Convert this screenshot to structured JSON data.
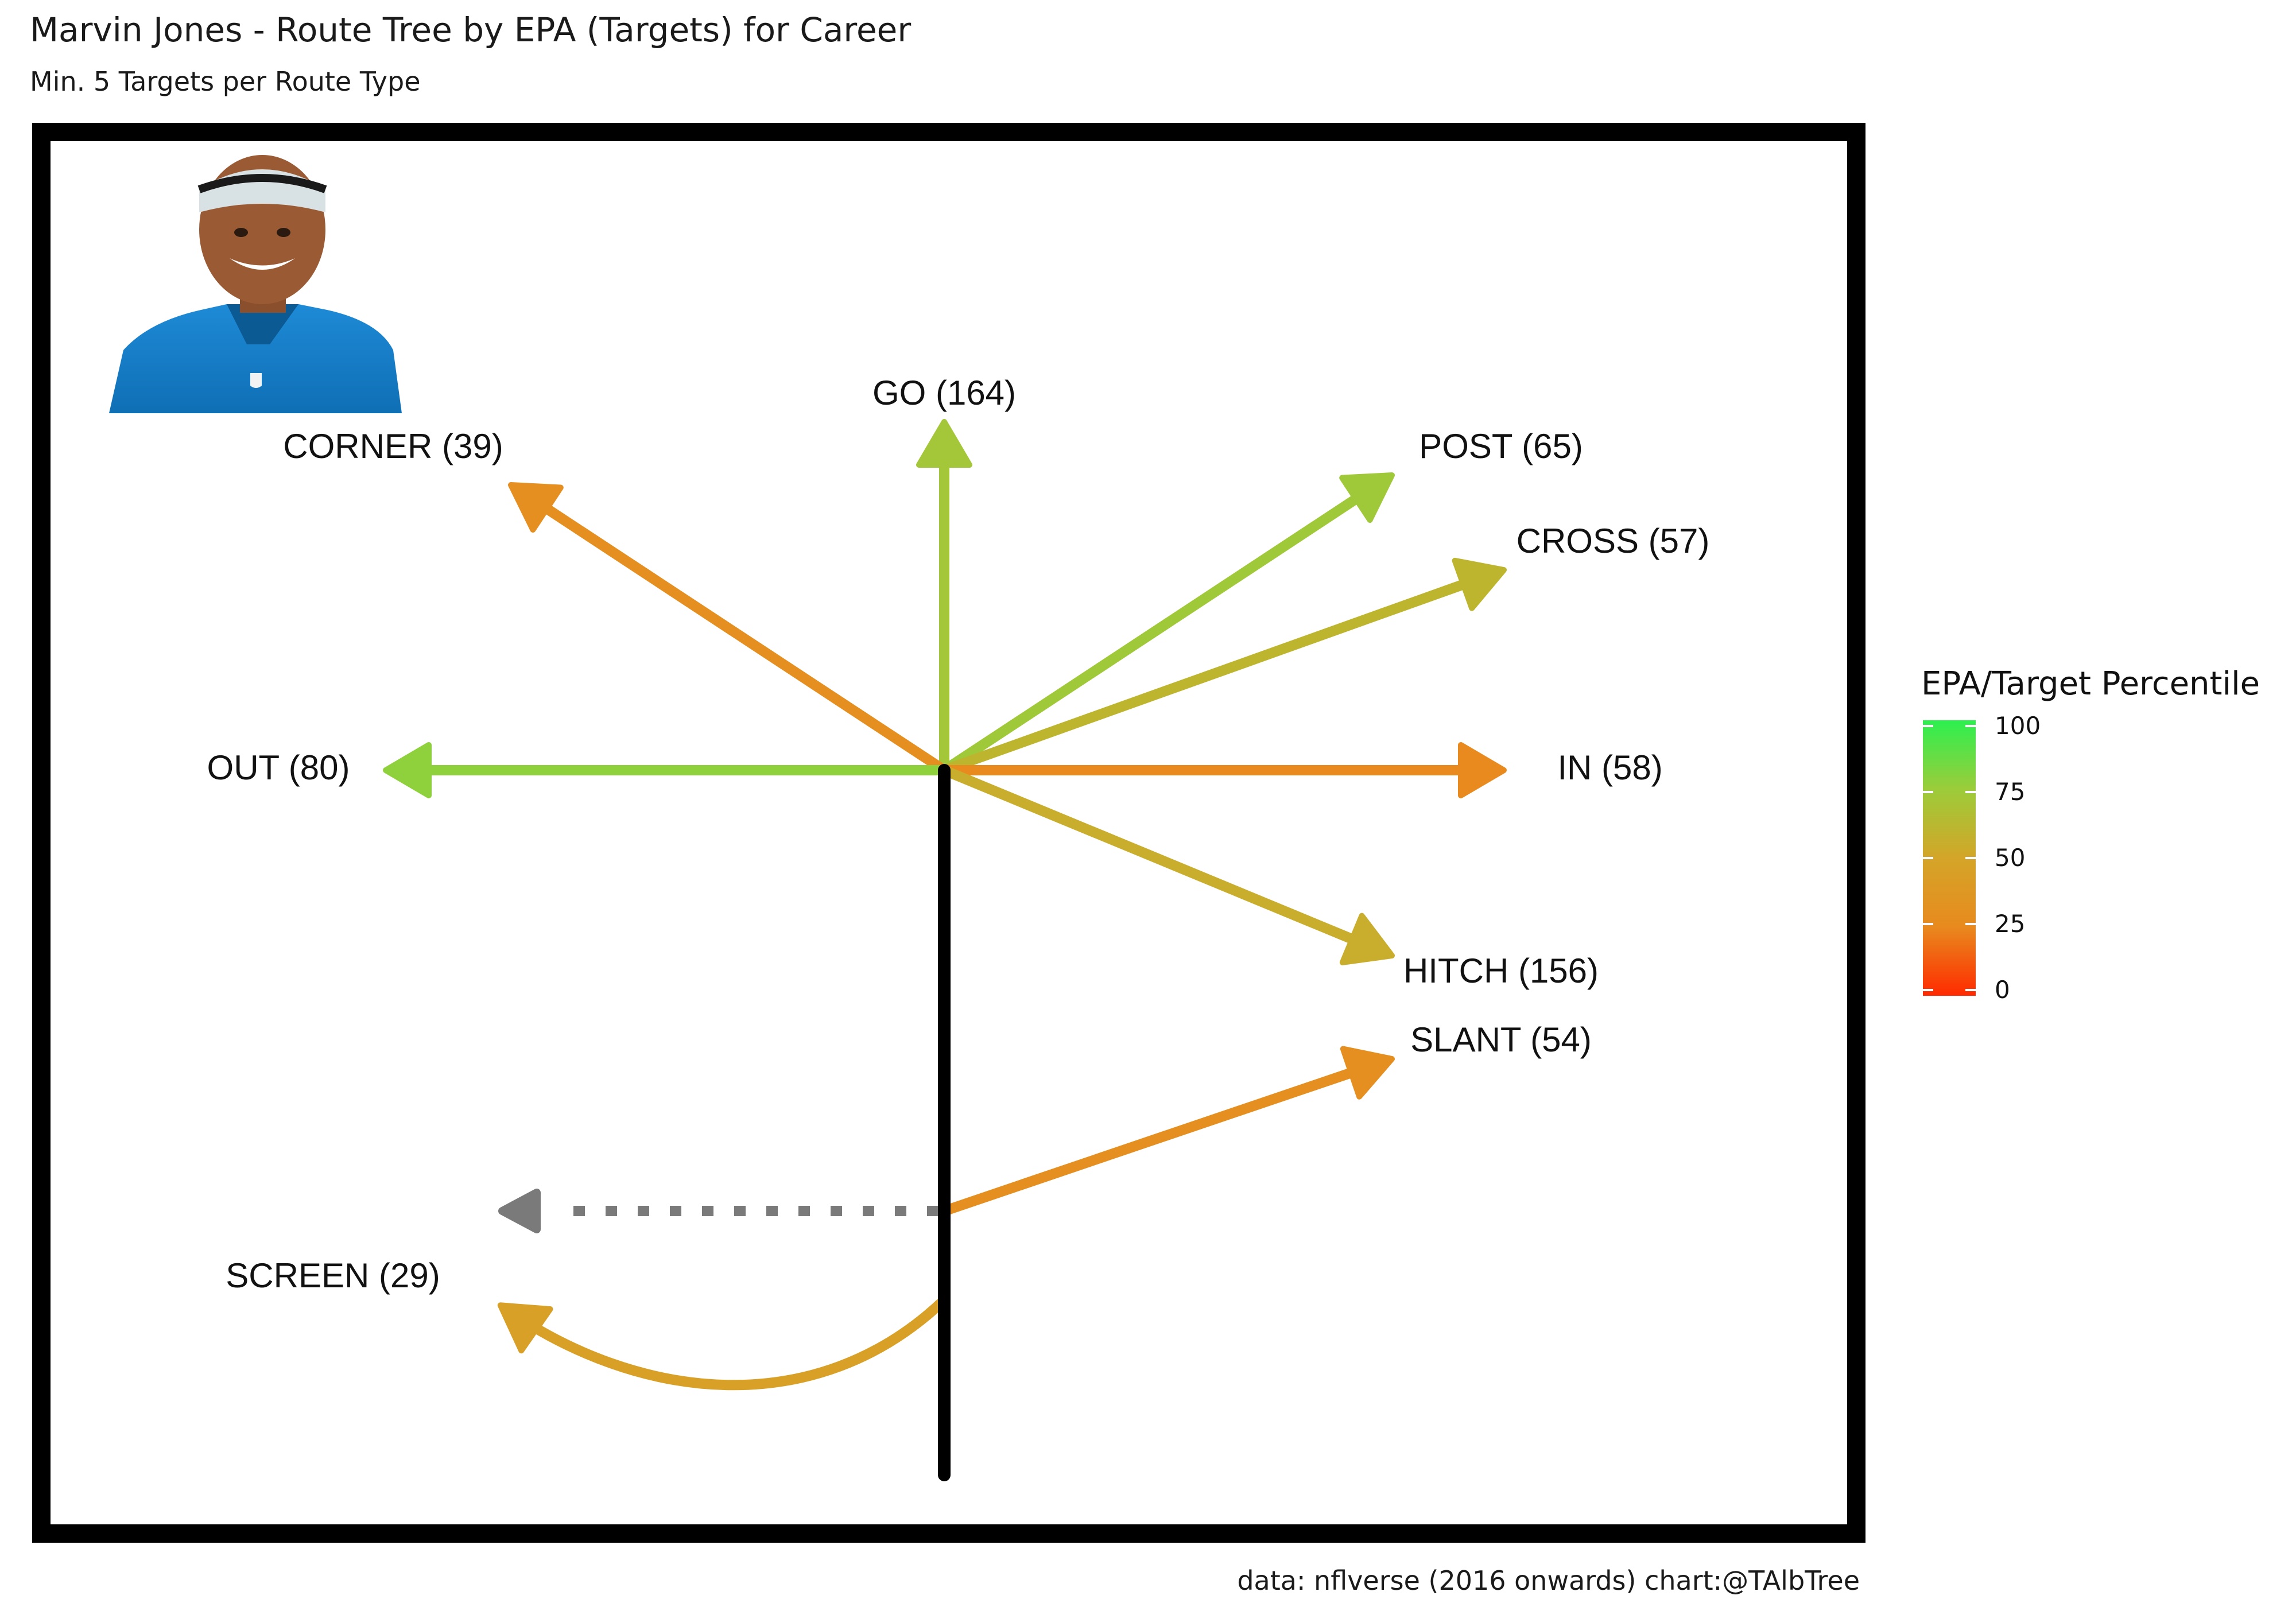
{
  "chart_data": {
    "type": "route-tree",
    "title": "Marvin Jones - Route Tree by EPA (Targets) for Career",
    "subtitle": "Min. 5 Targets per Route Type",
    "caption": "data: nflverse (2016 onwards)  chart:@TAlbTree",
    "player_photo": "player-headshot",
    "routes": [
      {
        "name": "GO",
        "targets": 164,
        "label": "GO (164)",
        "percentile": 72
      },
      {
        "name": "CORNER",
        "targets": 39,
        "label": "CORNER (39)",
        "percentile": 30
      },
      {
        "name": "POST",
        "targets": 65,
        "label": "POST (65)",
        "percentile": 73
      },
      {
        "name": "CROSS",
        "targets": 57,
        "label": "CROSS (57)",
        "percentile": 60
      },
      {
        "name": "OUT",
        "targets": 80,
        "label": "OUT (80)",
        "percentile": 78
      },
      {
        "name": "IN",
        "targets": 58,
        "label": "IN (58)",
        "percentile": 25
      },
      {
        "name": "HITCH",
        "targets": 156,
        "label": "HITCH (156)",
        "percentile": 55
      },
      {
        "name": "SLANT",
        "targets": 54,
        "label": "SLANT (54)",
        "percentile": 30
      },
      {
        "name": "SCREEN",
        "targets": 29,
        "label": "SCREEN (29)",
        "percentile": 45
      }
    ],
    "legend": {
      "title": "EPA/Target Percentile",
      "ticks": [
        0,
        25,
        50,
        75,
        100
      ],
      "colors": {
        "low": "#ff2a00",
        "mid": "#d4a528",
        "high": "#2cf04f"
      },
      "placement": "right"
    }
  }
}
